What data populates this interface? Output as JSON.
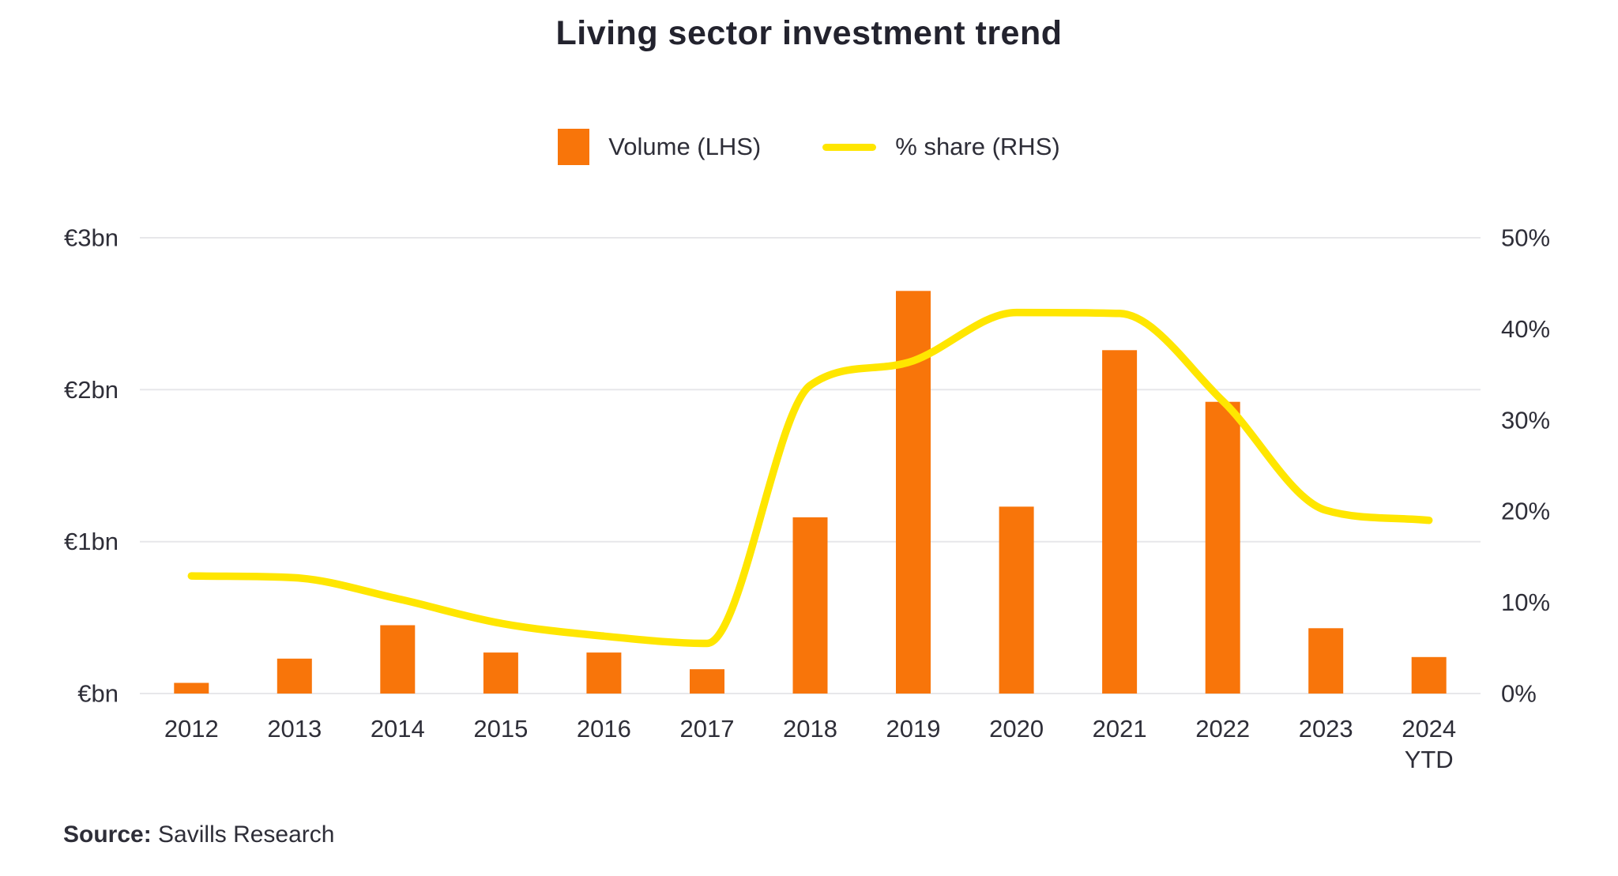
{
  "source": {
    "prefix": "Source:",
    "text": "Savills Research"
  },
  "colors": {
    "bar": "#f8750a",
    "line": "#ffe600",
    "text": "#2e2e38",
    "title": "#23232e",
    "grid": "#e7e7ea",
    "background": "#ffffff"
  },
  "chart_data": {
    "type": "bar+line combo",
    "title": "Living sector investment trend",
    "categories": [
      "2012",
      "2013",
      "2014",
      "2015",
      "2016",
      "2017",
      "2018",
      "2019",
      "2020",
      "2021",
      "2022",
      "2023",
      "2024\nYTD"
    ],
    "series": [
      {
        "name": "Volume (LHS)",
        "type": "bar",
        "axis": "left",
        "unit": "EUR bn",
        "values": [
          0.07,
          0.23,
          0.45,
          0.27,
          0.27,
          0.16,
          1.16,
          2.65,
          1.23,
          2.26,
          1.92,
          0.43,
          0.24
        ]
      },
      {
        "name": "% share (RHS)",
        "type": "line",
        "axis": "right",
        "unit": "%",
        "values": [
          12.9,
          12.7,
          10.4,
          7.7,
          6.3,
          5.5,
          33.8,
          36.5,
          41.8,
          41.7,
          32.1,
          20.1,
          19.0
        ]
      }
    ],
    "left_axis": {
      "ticks": [
        "€bn",
        "€1bn",
        "€2bn",
        "€3bn"
      ],
      "min": 0,
      "max": 3
    },
    "right_axis": {
      "ticks": [
        "0%",
        "10%",
        "20%",
        "30%",
        "40%",
        "50%"
      ],
      "min": 0,
      "max": 50
    },
    "grid": "horizontal gridlines at each €1bn step",
    "legend_position": "top-center"
  }
}
